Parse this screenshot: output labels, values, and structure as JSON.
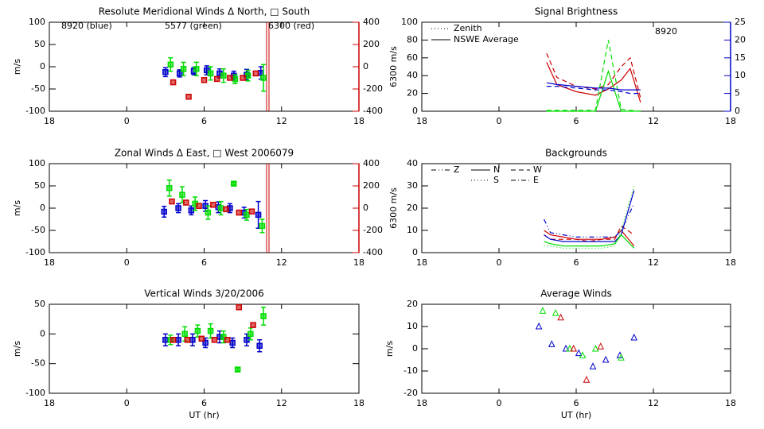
{
  "chart_data": [
    {
      "type": "scatter",
      "title": "Resolute Meridional Winds Δ North, □ South",
      "ylabel": "m/s",
      "y2label": "6300 m/s",
      "y2_color": "#cc0000",
      "xlim": [
        -6,
        18
      ],
      "xticks": [
        {
          "value": -6,
          "label": "18"
        },
        0,
        6,
        12,
        18
      ],
      "ylim": [
        -100,
        100
      ],
      "yticks": [
        -100,
        -50,
        0,
        50,
        100
      ],
      "y2lim": [
        -400,
        400
      ],
      "y2ticks": [
        -400,
        -200,
        0,
        200,
        400
      ],
      "series": [
        {
          "name": "8920 (blue)",
          "color": "#0000cc",
          "marker": "square",
          "x": [
            3.0,
            4.1,
            5.2,
            6.2,
            7.2,
            8.3,
            9.3,
            10.4
          ],
          "values": [
            -12,
            -15,
            -10,
            -8,
            -15,
            -20,
            -18,
            -14
          ],
          "errors": [
            10,
            8,
            8,
            10,
            10,
            10,
            12,
            14
          ]
        },
        {
          "name": "5577 (green)",
          "color": "#00dd00",
          "marker": "square",
          "x": [
            3.4,
            4.4,
            5.4,
            6.5,
            7.5,
            8.4,
            9.4,
            10.6
          ],
          "values": [
            5,
            -5,
            -5,
            -15,
            -20,
            -28,
            -20,
            -25
          ],
          "errors": [
            15,
            15,
            15,
            15,
            15,
            10,
            12,
            30
          ]
        },
        {
          "name": "6300 (red)",
          "color": "#cc0000",
          "marker": "square",
          "axis": "y2",
          "x": [
            3.6,
            4.8,
            6.0,
            7.0,
            8.0,
            9.0,
            10.0
          ],
          "values": [
            -140,
            -270,
            -120,
            -110,
            -100,
            -100,
            -60
          ]
        }
      ]
    },
    {
      "type": "scatter",
      "title": "Signal Brightness",
      "y2_color": "#0000cc",
      "line_type": "line",
      "xlim": [
        -6,
        18
      ],
      "xticks": [
        {
          "value": -6,
          "label": "18"
        },
        0,
        6,
        12,
        18
      ],
      "ylim": [
        0,
        100
      ],
      "yticks": [
        0,
        20,
        40,
        60,
        80,
        100
      ],
      "y2lim": [
        0,
        25
      ],
      "y2ticks": [
        0,
        5,
        10,
        15,
        20,
        25
      ],
      "legend": [
        {
          "label": "Zenith",
          "dash": "dotted"
        },
        {
          "label": "NSWE Average",
          "dash": "solid"
        }
      ],
      "annotations": [
        {
          "text": "8920",
          "color": "#0000cc"
        }
      ],
      "x": [
        3.7,
        4.5,
        6.0,
        7.5,
        8.5,
        9.5,
        10.2,
        11.0
      ],
      "series": [
        {
          "color": "#cc0000",
          "dash": "dashed",
          "values": [
            65,
            38,
            28,
            25,
            30,
            50,
            60,
            15
          ]
        },
        {
          "color": "#cc0000",
          "dash": "solid",
          "values": [
            55,
            30,
            22,
            18,
            25,
            35,
            48,
            10
          ]
        },
        {
          "color": "#00dd00",
          "dash": "dashed",
          "values": [
            1,
            1,
            1,
            1,
            80,
            2,
            1,
            0
          ]
        },
        {
          "color": "#00dd00",
          "dash": "solid",
          "values": [
            0,
            0,
            0,
            0,
            45,
            0,
            0,
            0
          ]
        },
        {
          "color": "#0000cc",
          "dash": "dashed",
          "axis": "y2",
          "values": [
            7,
            7,
            6.5,
            6,
            6,
            5.5,
            5,
            5
          ]
        },
        {
          "color": "#0000cc",
          "dash": "solid",
          "axis": "y2",
          "values": [
            8,
            7.5,
            7,
            6.5,
            6.5,
            6,
            6,
            6
          ]
        }
      ]
    },
    {
      "type": "scatter",
      "title": "Zonal Winds Δ East, □ West 2006079",
      "ylabel": "m/s",
      "y2label": "6300 m/s",
      "y2_color": "#cc0000",
      "xlim": [
        -6,
        18
      ],
      "xticks": [
        {
          "value": -6,
          "label": "18"
        },
        0,
        6,
        12,
        18
      ],
      "ylim": [
        -100,
        100
      ],
      "yticks": [
        -100,
        -50,
        0,
        50,
        100
      ],
      "y2lim": [
        -400,
        400
      ],
      "y2ticks": [
        -400,
        -200,
        0,
        200,
        400
      ],
      "series": [
        {
          "color": "#0000cc",
          "marker": "square",
          "x": [
            2.9,
            4.0,
            5.0,
            6.1,
            7.1,
            8.0,
            9.1,
            10.2
          ],
          "values": [
            -8,
            0,
            -5,
            5,
            2,
            0,
            -10,
            -15
          ],
          "errors": [
            12,
            10,
            10,
            12,
            12,
            10,
            12,
            30
          ]
        },
        {
          "color": "#00dd00",
          "marker": "square",
          "x": [
            3.3,
            4.3,
            5.3,
            6.3,
            7.3,
            8.3,
            9.3,
            10.5
          ],
          "values": [
            45,
            30,
            10,
            -10,
            0,
            55,
            -15,
            -40
          ],
          "errors": [
            18,
            18,
            15,
            15,
            15,
            3,
            12,
            15
          ]
        },
        {
          "color": "#cc0000",
          "marker": "square",
          "axis": "y2",
          "x": [
            3.5,
            4.6,
            5.6,
            6.7,
            7.7,
            8.7,
            9.7
          ],
          "values": [
            60,
            50,
            20,
            30,
            -10,
            -40,
            -30
          ]
        }
      ]
    },
    {
      "type": "line",
      "title": "Backgrounds",
      "xlim": [
        -6,
        18
      ],
      "xticks": [
        {
          "value": -6,
          "label": "18"
        },
        0,
        6,
        12,
        18
      ],
      "ylim": [
        0,
        40
      ],
      "yticks": [
        0,
        10,
        20,
        30,
        40
      ],
      "legend": [
        {
          "label": "Z",
          "dash": "dashdotdot"
        },
        {
          "label": "N",
          "dash": "solid"
        },
        {
          "label": "W",
          "dash": "dashed"
        },
        {
          "label": "S",
          "dash": "dotted"
        },
        {
          "label": "E",
          "dash": "dashdot"
        }
      ],
      "x": [
        3.5,
        4.0,
        5.0,
        6.0,
        7.0,
        8.0,
        9.0,
        9.5,
        10.5
      ],
      "series": [
        {
          "color": "#cc0000",
          "dash": "solid",
          "values": [
            10,
            8,
            7,
            6,
            6,
            6,
            7,
            10,
            3
          ]
        },
        {
          "color": "#cc0000",
          "dash": "dashed",
          "values": [
            8,
            6,
            6,
            6,
            5,
            6,
            6,
            12,
            8
          ]
        },
        {
          "color": "#0000cc",
          "dash": "solid",
          "values": [
            8,
            6,
            5,
            5,
            5,
            5,
            5,
            8,
            28
          ]
        },
        {
          "color": "#0000cc",
          "dash": "dashdotdot",
          "values": [
            15,
            9,
            8,
            7,
            7,
            7,
            7,
            10,
            22
          ]
        },
        {
          "color": "#00dd00",
          "dash": "solid",
          "values": [
            5,
            4,
            3,
            3,
            3,
            3,
            4,
            8,
            2
          ]
        },
        {
          "color": "#00dd00",
          "dash": "dotted",
          "values": [
            3,
            3,
            2,
            2,
            2,
            2,
            3,
            10,
            30
          ]
        }
      ]
    },
    {
      "type": "scatter",
      "title": "Vertical Winds 3/20/2006",
      "ylabel": "m/s",
      "xlabel": "UT (hr)",
      "xlim": [
        -6,
        18
      ],
      "xticks": [
        {
          "value": -6,
          "label": "18"
        },
        0,
        6,
        12,
        18
      ],
      "ylim": [
        -100,
        50
      ],
      "yticks": [
        -100,
        -50,
        0,
        50
      ],
      "series": [
        {
          "color": "#0000cc",
          "marker": "square",
          "x": [
            3.0,
            4.0,
            5.1,
            6.1,
            7.2,
            8.2,
            9.3,
            10.3
          ],
          "values": [
            -10,
            -10,
            -10,
            -15,
            -5,
            -15,
            -10,
            -20
          ],
          "errors": [
            10,
            10,
            10,
            8,
            10,
            8,
            10,
            10
          ]
        },
        {
          "color": "#00dd00",
          "marker": "square",
          "x": [
            3.4,
            4.5,
            5.5,
            6.5,
            7.5,
            8.6,
            9.6,
            10.6
          ],
          "values": [
            -10,
            0,
            5,
            5,
            -5,
            -60,
            0,
            30
          ],
          "errors": [
            8,
            12,
            10,
            12,
            10,
            3,
            10,
            15
          ]
        },
        {
          "color": "#cc0000",
          "marker": "square",
          "x": [
            3.6,
            4.7,
            5.8,
            6.8,
            7.8,
            8.7,
            9.8
          ],
          "values": [
            -10,
            -10,
            -8,
            -10,
            -10,
            45,
            15
          ]
        }
      ]
    },
    {
      "type": "scatter",
      "title": "Average Winds",
      "ylabel": "m/s",
      "xlabel": "UT (hr)",
      "xlim": [
        -6,
        18
      ],
      "xticks": [
        {
          "value": -6,
          "label": "18"
        },
        0,
        6,
        12,
        18
      ],
      "ylim": [
        -20,
        20
      ],
      "yticks": [
        -20,
        -10,
        0,
        10,
        20
      ],
      "series": [
        {
          "color": "#0000cc",
          "marker": "triangle",
          "x": [
            3.1,
            4.1,
            5.2,
            6.2,
            7.3,
            8.3,
            9.4,
            10.5
          ],
          "values": [
            10,
            2,
            0,
            -2,
            -8,
            -5,
            -3,
            5
          ]
        },
        {
          "color": "#00dd00",
          "marker": "triangle",
          "x": [
            3.4,
            4.4,
            5.5,
            6.5,
            7.5,
            9.5
          ],
          "values": [
            17,
            16,
            0,
            -3,
            0,
            -4
          ]
        },
        {
          "color": "#cc0000",
          "marker": "triangle",
          "x": [
            4.8,
            5.8,
            6.8,
            7.9
          ],
          "values": [
            14,
            0,
            -14,
            1
          ]
        }
      ]
    }
  ]
}
